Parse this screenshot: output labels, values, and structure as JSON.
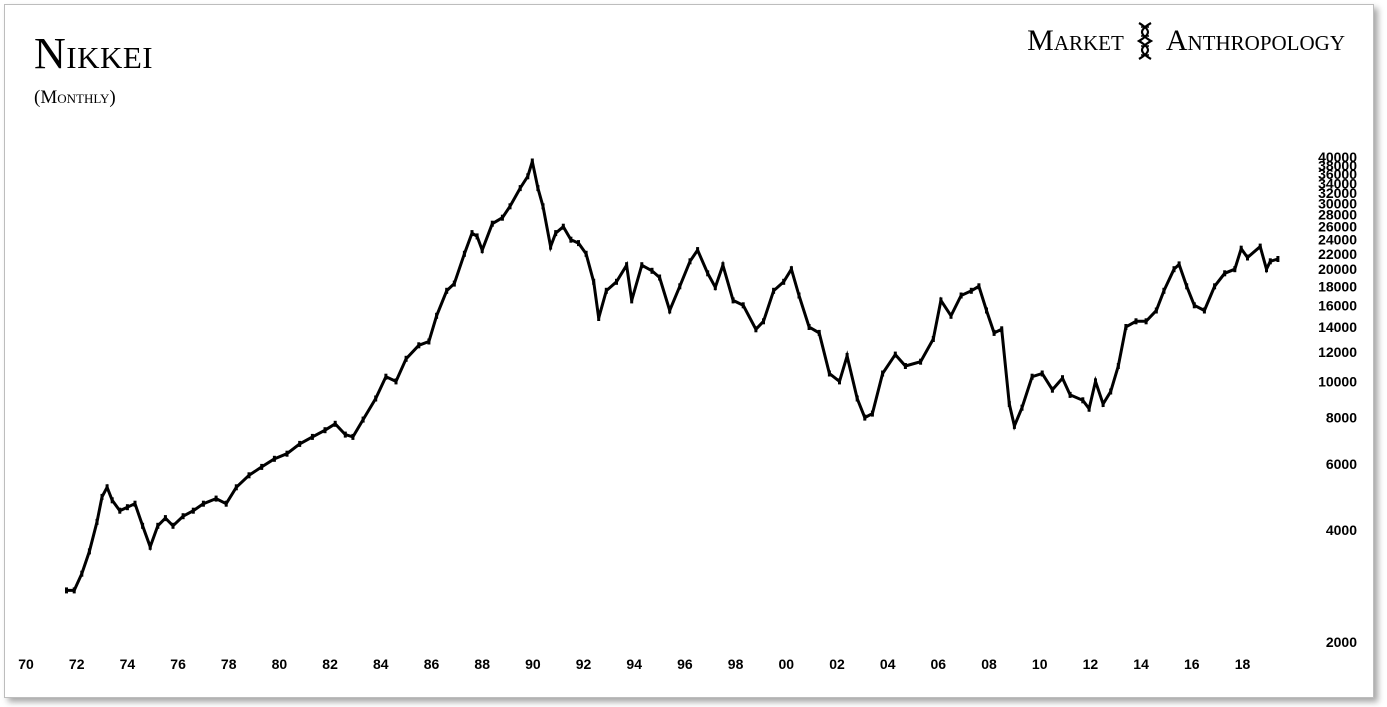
{
  "header": {
    "title": "Nikkei",
    "subtitle": "(Monthly)"
  },
  "brand": {
    "left_text": "Market",
    "right_text": "Anthropology",
    "icon": "dna-helix-icon"
  },
  "chart_data": {
    "type": "line",
    "title": "Nikkei",
    "subtitle": "(Monthly)",
    "y_scale": "log",
    "ylim": [
      1800,
      40000
    ],
    "xlim": [
      1970,
      2019.6
    ],
    "grid": false,
    "legend": "none",
    "line_color": "#000000",
    "x_ticks": [
      1970,
      1972,
      1974,
      1976,
      1978,
      1980,
      1982,
      1984,
      1986,
      1988,
      1990,
      1992,
      1994,
      1996,
      1998,
      2000,
      2002,
      2004,
      2006,
      2008,
      2010,
      2012,
      2014,
      2016,
      2018
    ],
    "x_tick_labels": [
      "70",
      "72",
      "74",
      "76",
      "78",
      "80",
      "82",
      "84",
      "86",
      "88",
      "90",
      "92",
      "94",
      "96",
      "98",
      "00",
      "02",
      "04",
      "06",
      "08",
      "10",
      "12",
      "14",
      "16",
      "18"
    ],
    "y_ticks": [
      2000,
      4000,
      6000,
      8000,
      10000,
      12000,
      14000,
      16000,
      18000,
      20000,
      22000,
      24000,
      26000,
      28000,
      30000,
      32000,
      34000,
      36000,
      38000,
      40000
    ],
    "y_tick_labels": [
      "2000",
      "4000",
      "6000",
      "8000",
      "10000",
      "12000",
      "14000",
      "16000",
      "18000",
      "20000",
      "22000",
      "24000",
      "26000",
      "28000",
      "30000",
      "32000",
      "34000",
      "36000",
      "38000",
      "40000"
    ],
    "series": [
      {
        "values": [
          [
            1971.6,
            2750
          ],
          [
            1971.9,
            2750
          ],
          [
            1972.2,
            3050
          ],
          [
            1972.5,
            3500
          ],
          [
            1972.8,
            4200
          ],
          [
            1973.0,
            4900
          ],
          [
            1973.2,
            5200
          ],
          [
            1973.4,
            4800
          ],
          [
            1973.7,
            4500
          ],
          [
            1974.0,
            4600
          ],
          [
            1974.3,
            4700
          ],
          [
            1974.6,
            4100
          ],
          [
            1974.9,
            3600
          ],
          [
            1975.2,
            4100
          ],
          [
            1975.5,
            4300
          ],
          [
            1975.8,
            4100
          ],
          [
            1976.2,
            4350
          ],
          [
            1976.6,
            4500
          ],
          [
            1977.0,
            4700
          ],
          [
            1977.5,
            4850
          ],
          [
            1977.9,
            4700
          ],
          [
            1978.3,
            5200
          ],
          [
            1978.8,
            5600
          ],
          [
            1979.3,
            5900
          ],
          [
            1979.8,
            6200
          ],
          [
            1980.3,
            6400
          ],
          [
            1980.8,
            6800
          ],
          [
            1981.3,
            7100
          ],
          [
            1981.8,
            7400
          ],
          [
            1982.2,
            7700
          ],
          [
            1982.6,
            7200
          ],
          [
            1982.9,
            7100
          ],
          [
            1983.3,
            7900
          ],
          [
            1983.8,
            9000
          ],
          [
            1984.2,
            10300
          ],
          [
            1984.6,
            10000
          ],
          [
            1985.0,
            11500
          ],
          [
            1985.5,
            12500
          ],
          [
            1985.9,
            12800
          ],
          [
            1986.2,
            15000
          ],
          [
            1986.6,
            17500
          ],
          [
            1986.9,
            18300
          ],
          [
            1987.3,
            22000
          ],
          [
            1987.6,
            25000
          ],
          [
            1987.8,
            24500
          ],
          [
            1988.0,
            22500
          ],
          [
            1988.4,
            26500
          ],
          [
            1988.8,
            27500
          ],
          [
            1989.1,
            29500
          ],
          [
            1989.5,
            33000
          ],
          [
            1989.8,
            35500
          ],
          [
            1989.98,
            38900
          ],
          [
            1990.2,
            33000
          ],
          [
            1990.4,
            29500
          ],
          [
            1990.7,
            23000
          ],
          [
            1990.9,
            25000
          ],
          [
            1991.2,
            26000
          ],
          [
            1991.5,
            24000
          ],
          [
            1991.8,
            23500
          ],
          [
            1992.1,
            22000
          ],
          [
            1992.4,
            18500
          ],
          [
            1992.6,
            14800
          ],
          [
            1992.9,
            17500
          ],
          [
            1993.3,
            18500
          ],
          [
            1993.7,
            20500
          ],
          [
            1993.9,
            16500
          ],
          [
            1994.3,
            20500
          ],
          [
            1994.7,
            19800
          ],
          [
            1995.0,
            19000
          ],
          [
            1995.4,
            15500
          ],
          [
            1995.8,
            18000
          ],
          [
            1996.2,
            21000
          ],
          [
            1996.5,
            22500
          ],
          [
            1996.9,
            19500
          ],
          [
            1997.2,
            17900
          ],
          [
            1997.5,
            20500
          ],
          [
            1997.9,
            16500
          ],
          [
            1998.3,
            16000
          ],
          [
            1998.8,
            13800
          ],
          [
            1999.1,
            14500
          ],
          [
            1999.5,
            17500
          ],
          [
            1999.9,
            18500
          ],
          [
            2000.2,
            20000
          ],
          [
            2000.5,
            17000
          ],
          [
            2000.9,
            14000
          ],
          [
            2001.3,
            13500
          ],
          [
            2001.7,
            10500
          ],
          [
            2002.1,
            10000
          ],
          [
            2002.4,
            11700
          ],
          [
            2002.8,
            9000
          ],
          [
            2003.1,
            8000
          ],
          [
            2003.4,
            8200
          ],
          [
            2003.8,
            10500
          ],
          [
            2004.3,
            11800
          ],
          [
            2004.7,
            11000
          ],
          [
            2005.3,
            11300
          ],
          [
            2005.8,
            13000
          ],
          [
            2006.1,
            16500
          ],
          [
            2006.5,
            15000
          ],
          [
            2006.9,
            17000
          ],
          [
            2007.3,
            17500
          ],
          [
            2007.6,
            18000
          ],
          [
            2007.9,
            15500
          ],
          [
            2008.2,
            13500
          ],
          [
            2008.5,
            13800
          ],
          [
            2008.8,
            8700
          ],
          [
            2009.0,
            7600
          ],
          [
            2009.3,
            8500
          ],
          [
            2009.7,
            10300
          ],
          [
            2010.1,
            10500
          ],
          [
            2010.5,
            9500
          ],
          [
            2010.9,
            10200
          ],
          [
            2011.2,
            9200
          ],
          [
            2011.7,
            8900
          ],
          [
            2011.95,
            8450
          ],
          [
            2012.2,
            10000
          ],
          [
            2012.5,
            8700
          ],
          [
            2012.8,
            9400
          ],
          [
            2013.1,
            11000
          ],
          [
            2013.4,
            14000
          ],
          [
            2013.8,
            14500
          ],
          [
            2014.2,
            14500
          ],
          [
            2014.6,
            15500
          ],
          [
            2014.9,
            17500
          ],
          [
            2015.3,
            20000
          ],
          [
            2015.5,
            20600
          ],
          [
            2015.8,
            18000
          ],
          [
            2016.1,
            16000
          ],
          [
            2016.5,
            15500
          ],
          [
            2016.9,
            18000
          ],
          [
            2017.3,
            19500
          ],
          [
            2017.7,
            20000
          ],
          [
            2017.95,
            22700
          ],
          [
            2018.2,
            21500
          ],
          [
            2018.7,
            23000
          ],
          [
            2018.95,
            20000
          ],
          [
            2019.1,
            21000
          ],
          [
            2019.4,
            21300
          ]
        ]
      }
    ]
  }
}
